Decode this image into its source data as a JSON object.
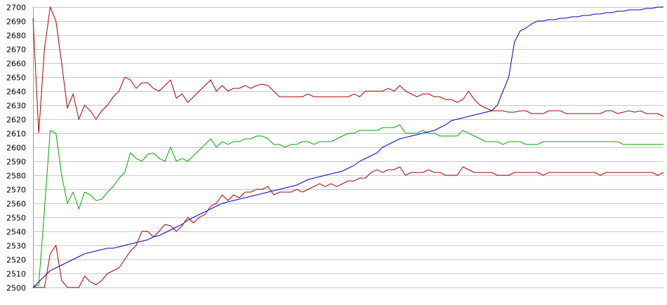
{
  "chart_data": {
    "type": "line",
    "title": "",
    "xlabel": "",
    "ylabel": "",
    "ylim": [
      2500,
      2700
    ],
    "yticks": [
      "2500",
      "2510",
      "2520",
      "2530",
      "2540",
      "2550",
      "2560",
      "2570",
      "2580",
      "2590",
      "2600",
      "2610",
      "2620",
      "2630",
      "2640",
      "2650",
      "2660",
      "2670",
      "2680",
      "2690",
      "2700"
    ],
    "grid": true,
    "legend": "none",
    "x": [
      0,
      2,
      4,
      6,
      8,
      10,
      12,
      14,
      16,
      18,
      20,
      22,
      24,
      26,
      28,
      30,
      32,
      34,
      36,
      38,
      40,
      42,
      44,
      46,
      48,
      50,
      52,
      54,
      56,
      58,
      60,
      62,
      64,
      66,
      68,
      70,
      72,
      74,
      76,
      78,
      80,
      82,
      84,
      86,
      88,
      90,
      92,
      94,
      96,
      98,
      100,
      102,
      104,
      106,
      108,
      110,
      112,
      114,
      116,
      118,
      120,
      122,
      124,
      126,
      128,
      130,
      132,
      134,
      136,
      138,
      140,
      142,
      144,
      146,
      148,
      150,
      152,
      154,
      156,
      158,
      160,
      162,
      164,
      166,
      168,
      170,
      172,
      174,
      176,
      178,
      180,
      182,
      184,
      186,
      188,
      190,
      192,
      194,
      196,
      198,
      200,
      202,
      204,
      206,
      208,
      210,
      212,
      214,
      216,
      218,
      220
    ],
    "series": [
      {
        "color": "#aa0000",
        "values": [
          2692,
          2610,
          2670,
          2700,
          2690,
          2660,
          2628,
          2638,
          2620,
          2630,
          2626,
          2620,
          2626,
          2630,
          2636,
          2640,
          2650,
          2648,
          2642,
          2646,
          2646,
          2642,
          2640,
          2644,
          2648,
          2635,
          2638,
          2632,
          2636,
          2640,
          2644,
          2648,
          2640,
          2644,
          2640,
          2642,
          2642,
          2644,
          2642,
          2644,
          2645,
          2644,
          2640,
          2636,
          2636,
          2636,
          2636,
          2636,
          2638,
          2636,
          2636,
          2636,
          2636,
          2636,
          2636,
          2636,
          2638,
          2636,
          2640,
          2640,
          2640,
          2640,
          2642,
          2640,
          2644,
          2640,
          2638,
          2636,
          2638,
          2638,
          2636,
          2636,
          2634,
          2634,
          2632,
          2634,
          2640,
          2634,
          2630,
          2628,
          2626,
          2626,
          2626,
          2625,
          2625,
          2626,
          2626,
          2624,
          2624,
          2624,
          2626,
          2626,
          2626,
          2624,
          2624,
          2624,
          2624,
          2624,
          2624,
          2624,
          2626,
          2626,
          2624,
          2625,
          2626,
          2625,
          2626,
          2624,
          2624,
          2624,
          2622
        ]
      },
      {
        "color": "#00aa00",
        "values": [
          2500,
          2502,
          2555,
          2612,
          2610,
          2580,
          2560,
          2568,
          2556,
          2568,
          2566,
          2562,
          2563,
          2568,
          2572,
          2578,
          2582,
          2596,
          2592,
          2590,
          2595,
          2596,
          2592,
          2590,
          2600,
          2590,
          2592,
          2590,
          2594,
          2598,
          2602,
          2606,
          2600,
          2604,
          2602,
          2604,
          2604,
          2606,
          2606,
          2608,
          2608,
          2606,
          2602,
          2602,
          2600,
          2602,
          2602,
          2604,
          2604,
          2602,
          2604,
          2604,
          2604,
          2606,
          2608,
          2610,
          2610,
          2612,
          2612,
          2612,
          2612,
          2614,
          2614,
          2614,
          2616,
          2610,
          2610,
          2610,
          2612,
          2610,
          2610,
          2608,
          2608,
          2608,
          2608,
          2612,
          2610,
          2608,
          2606,
          2604,
          2604,
          2604,
          2602,
          2604,
          2604,
          2604,
          2602,
          2602,
          2602,
          2604,
          2604,
          2604,
          2604,
          2604,
          2604,
          2604,
          2604,
          2604,
          2604,
          2604,
          2604,
          2604,
          2604,
          2602,
          2602,
          2602,
          2602,
          2602,
          2602,
          2602,
          2602
        ]
      },
      {
        "color": "#0000cc",
        "values": [
          2500,
          2504,
          2508,
          2512,
          2514,
          2516,
          2518,
          2520,
          2522,
          2524,
          2525,
          2526,
          2527,
          2528,
          2528,
          2529,
          2530,
          2531,
          2532,
          2533,
          2534,
          2536,
          2537,
          2539,
          2541,
          2543,
          2545,
          2548,
          2550,
          2552,
          2554,
          2556,
          2558,
          2560,
          2561,
          2562,
          2563,
          2564,
          2565,
          2566,
          2567,
          2568,
          2569,
          2570,
          2571,
          2572,
          2573,
          2575,
          2577,
          2578,
          2579,
          2580,
          2581,
          2582,
          2583,
          2585,
          2587,
          2590,
          2592,
          2594,
          2596,
          2600,
          2602,
          2604,
          2606,
          2607,
          2608,
          2609,
          2610,
          2611,
          2612,
          2614,
          2616,
          2619,
          2620,
          2621,
          2622,
          2623,
          2624,
          2625,
          2626,
          2630,
          2640,
          2650,
          2675,
          2683,
          2685,
          2688,
          2690,
          2690,
          2691,
          2691,
          2692,
          2692,
          2693,
          2693,
          2694,
          2694,
          2695,
          2695,
          2696,
          2696,
          2697,
          2697,
          2698,
          2698,
          2698,
          2699,
          2699,
          2700,
          2700
        ]
      },
      {
        "color": "#aa0000",
        "values": [
          2500,
          2500,
          2500,
          2524,
          2530,
          2505,
          2500,
          2500,
          2500,
          2508,
          2504,
          2502,
          2505,
          2510,
          2512,
          2514,
          2520,
          2526,
          2530,
          2540,
          2540,
          2536,
          2540,
          2545,
          2544,
          2540,
          2544,
          2550,
          2546,
          2550,
          2552,
          2558,
          2560,
          2566,
          2562,
          2566,
          2564,
          2568,
          2568,
          2570,
          2570,
          2572,
          2566,
          2568,
          2568,
          2568,
          2570,
          2568,
          2570,
          2572,
          2574,
          2572,
          2574,
          2572,
          2574,
          2576,
          2576,
          2578,
          2578,
          2582,
          2584,
          2582,
          2584,
          2584,
          2586,
          2580,
          2582,
          2582,
          2582,
          2584,
          2582,
          2582,
          2580,
          2580,
          2580,
          2586,
          2584,
          2582,
          2582,
          2582,
          2582,
          2580,
          2580,
          2580,
          2582,
          2582,
          2582,
          2582,
          2582,
          2580,
          2582,
          2582,
          2582,
          2582,
          2582,
          2582,
          2582,
          2582,
          2582,
          2580,
          2582,
          2582,
          2582,
          2582,
          2582,
          2582,
          2582,
          2582,
          2582,
          2580,
          2582
        ]
      }
    ]
  }
}
